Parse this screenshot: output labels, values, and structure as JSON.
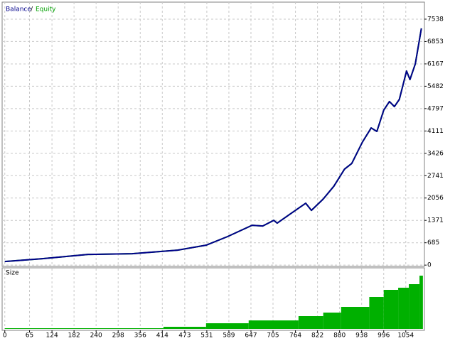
{
  "chart_data": [
    {
      "type": "line",
      "legend_separator": "/",
      "xlim": [
        -7,
        1103
      ],
      "ylim": [
        -40,
        8060
      ],
      "yticks": [
        0,
        685,
        1371,
        2056,
        2741,
        3426,
        4111,
        4797,
        5482,
        6167,
        6853,
        7538
      ],
      "grid": true,
      "x": [
        0,
        99,
        219,
        335,
        454,
        529,
        585,
        650,
        678,
        707,
        716,
        753,
        791,
        806,
        837,
        865,
        893,
        912,
        940,
        963,
        978,
        996,
        1011,
        1024,
        1037,
        1056,
        1065,
        1079,
        1095
      ],
      "series": [
        {
          "name": "Equity",
          "color": "#00a000",
          "values": [
            110,
            196,
            327,
            349,
            458,
            610,
            872,
            1220,
            1198,
            1373,
            1286,
            1590,
            1896,
            1678,
            2026,
            2419,
            2942,
            3116,
            3770,
            4205,
            4097,
            4750,
            5012,
            4859,
            5077,
            5949,
            5687,
            6167,
            7256
          ]
        },
        {
          "name": "Balance",
          "color": "#00008b",
          "values": [
            110,
            196,
            327,
            349,
            458,
            610,
            872,
            1220,
            1198,
            1373,
            1286,
            1590,
            1896,
            1678,
            2026,
            2419,
            2942,
            3116,
            3770,
            4205,
            4097,
            4750,
            5012,
            4859,
            5077,
            5949,
            5687,
            6167,
            7256
          ]
        }
      ]
    },
    {
      "type": "histogram",
      "title": "Size",
      "color": "#00b000",
      "xlim": [
        -7,
        1103
      ],
      "ylim": [
        0,
        0.85
      ],
      "xticks": [
        0,
        65,
        124,
        182,
        240,
        298,
        356,
        414,
        473,
        531,
        589,
        647,
        705,
        764,
        822,
        880,
        938,
        996,
        1054
      ],
      "x": [
        0,
        417,
        529,
        641,
        772,
        837,
        884,
        958,
        996,
        1034,
        1062,
        1090,
        1099
      ],
      "values": [
        0.01,
        0.03,
        0.08,
        0.12,
        0.18,
        0.23,
        0.31,
        0.45,
        0.55,
        0.58,
        0.63,
        0.75,
        0.82
      ]
    }
  ]
}
